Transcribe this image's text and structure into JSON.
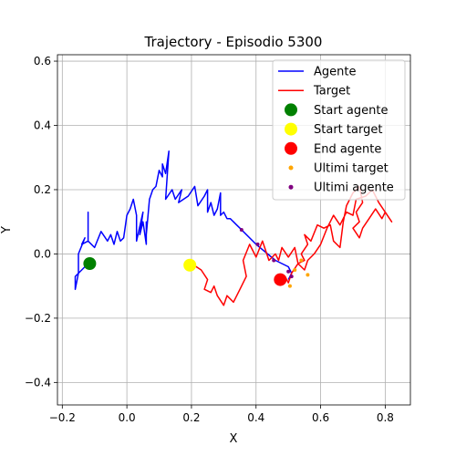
{
  "chart_data": {
    "type": "line",
    "title": "Trajectory - Episodio 5300",
    "xlabel": "X",
    "ylabel": "Y",
    "xlim": [
      -0.215,
      0.878
    ],
    "ylim": [
      -0.47,
      0.62
    ],
    "xticks": [
      -0.2,
      0.0,
      0.2,
      0.4,
      0.6,
      0.8
    ],
    "xtick_labels": [
      "−0.2",
      "0.0",
      "0.2",
      "0.4",
      "0.6",
      "0.8"
    ],
    "yticks": [
      -0.4,
      -0.2,
      0.0,
      0.2,
      0.4,
      0.6
    ],
    "ytick_labels": [
      "−0.4",
      "−0.2",
      "0.0",
      "0.2",
      "0.4",
      "0.6"
    ],
    "grid": true,
    "legend_position": "top-right",
    "colors": {
      "agent": "#0000ff",
      "target": "#ff0000",
      "start_agent": "#008000",
      "start_target": "#ffff00",
      "end_agent": "#ff0000",
      "last_target": "#ffa500",
      "last_agent": "#800080"
    },
    "series": [
      {
        "name": "Agente",
        "kind": "line",
        "points": [
          [
            -0.12,
            -0.03
          ],
          [
            -0.16,
            -0.07
          ],
          [
            -0.16,
            -0.11
          ],
          [
            -0.15,
            -0.06
          ],
          [
            -0.15,
            0.0
          ],
          [
            -0.13,
            0.05
          ],
          [
            -0.14,
            0.03
          ],
          [
            -0.12,
            0.04
          ],
          [
            -0.12,
            0.13
          ],
          [
            -0.12,
            0.04
          ],
          [
            -0.1,
            0.02
          ],
          [
            -0.08,
            0.07
          ],
          [
            -0.06,
            0.04
          ],
          [
            -0.05,
            0.06
          ],
          [
            -0.04,
            0.03
          ],
          [
            -0.03,
            0.07
          ],
          [
            -0.02,
            0.04
          ],
          [
            -0.01,
            0.05
          ],
          [
            0.0,
            0.12
          ],
          [
            0.01,
            0.14
          ],
          [
            0.02,
            0.17
          ],
          [
            0.03,
            0.12
          ],
          [
            0.03,
            0.04
          ],
          [
            0.05,
            0.13
          ],
          [
            0.04,
            0.06
          ],
          [
            0.05,
            0.1
          ],
          [
            0.06,
            0.03
          ],
          [
            0.06,
            0.1
          ],
          [
            0.06,
            0.06
          ],
          [
            0.07,
            0.17
          ],
          [
            0.08,
            0.2
          ],
          [
            0.09,
            0.21
          ],
          [
            0.1,
            0.26
          ],
          [
            0.11,
            0.24
          ],
          [
            0.11,
            0.28
          ],
          [
            0.12,
            0.25
          ],
          [
            0.13,
            0.32
          ],
          [
            0.12,
            0.17
          ],
          [
            0.14,
            0.2
          ],
          [
            0.15,
            0.17
          ],
          [
            0.17,
            0.2
          ],
          [
            0.16,
            0.16
          ],
          [
            0.19,
            0.18
          ],
          [
            0.21,
            0.21
          ],
          [
            0.22,
            0.15
          ],
          [
            0.24,
            0.18
          ],
          [
            0.25,
            0.2
          ],
          [
            0.25,
            0.13
          ],
          [
            0.26,
            0.16
          ],
          [
            0.27,
            0.12
          ],
          [
            0.28,
            0.14
          ],
          [
            0.29,
            0.19
          ],
          [
            0.29,
            0.12
          ],
          [
            0.3,
            0.13
          ],
          [
            0.31,
            0.11
          ],
          [
            0.32,
            0.11
          ],
          [
            0.33,
            0.1
          ],
          [
            0.34,
            0.09
          ],
          [
            0.35,
            0.08
          ],
          [
            0.4,
            0.03
          ],
          [
            0.46,
            -0.02
          ],
          [
            0.5,
            -0.04
          ],
          [
            0.51,
            -0.06
          ],
          [
            0.5,
            -0.08
          ]
        ]
      },
      {
        "name": "Target",
        "kind": "line",
        "points": [
          [
            0.2,
            -0.03
          ],
          [
            0.23,
            -0.05
          ],
          [
            0.25,
            -0.08
          ],
          [
            0.24,
            -0.11
          ],
          [
            0.26,
            -0.12
          ],
          [
            0.27,
            -0.1
          ],
          [
            0.28,
            -0.13
          ],
          [
            0.3,
            -0.16
          ],
          [
            0.31,
            -0.13
          ],
          [
            0.33,
            -0.15
          ],
          [
            0.35,
            -0.11
          ],
          [
            0.37,
            -0.07
          ],
          [
            0.36,
            -0.02
          ],
          [
            0.38,
            0.03
          ],
          [
            0.4,
            -0.01
          ],
          [
            0.42,
            0.04
          ],
          [
            0.44,
            -0.02
          ],
          [
            0.46,
            0.0
          ],
          [
            0.47,
            -0.02
          ],
          [
            0.48,
            0.02
          ],
          [
            0.5,
            -0.01
          ],
          [
            0.52,
            0.02
          ],
          [
            0.53,
            -0.03
          ],
          [
            0.55,
            -0.02
          ],
          [
            0.54,
            0.0
          ],
          [
            0.56,
            0.03
          ],
          [
            0.55,
            0.06
          ],
          [
            0.57,
            0.04
          ],
          [
            0.59,
            0.09
          ],
          [
            0.61,
            0.08
          ],
          [
            0.63,
            0.09
          ],
          [
            0.64,
            0.04
          ],
          [
            0.66,
            0.02
          ],
          [
            0.67,
            0.1
          ],
          [
            0.68,
            0.15
          ],
          [
            0.7,
            0.19
          ],
          [
            0.72,
            0.21
          ],
          [
            0.73,
            0.16
          ],
          [
            0.71,
            0.13
          ],
          [
            0.72,
            0.1
          ],
          [
            0.7,
            0.08
          ],
          [
            0.72,
            0.05
          ],
          [
            0.73,
            0.08
          ],
          [
            0.75,
            0.11
          ],
          [
            0.77,
            0.14
          ],
          [
            0.79,
            0.11
          ],
          [
            0.8,
            0.13
          ],
          [
            0.82,
            0.1
          ],
          [
            0.78,
            0.16
          ],
          [
            0.76,
            0.2
          ],
          [
            0.74,
            0.18
          ],
          [
            0.71,
            0.17
          ],
          [
            0.7,
            0.12
          ],
          [
            0.68,
            0.13
          ],
          [
            0.66,
            0.09
          ],
          [
            0.64,
            0.12
          ],
          [
            0.62,
            0.08
          ],
          [
            0.6,
            0.03
          ],
          [
            0.58,
            0.0
          ],
          [
            0.56,
            -0.02
          ],
          [
            0.55,
            -0.05
          ],
          [
            0.53,
            -0.03
          ],
          [
            0.51,
            -0.06
          ],
          [
            0.5,
            -0.09
          ],
          [
            0.49,
            -0.07
          ],
          [
            0.47,
            -0.08
          ]
        ]
      },
      {
        "name": "Start agente",
        "kind": "marker",
        "size": 11,
        "points": [
          [
            -0.115,
            -0.03
          ]
        ]
      },
      {
        "name": "Start target",
        "kind": "marker",
        "size": 11,
        "points": [
          [
            0.195,
            -0.035
          ]
        ]
      },
      {
        "name": "End agente",
        "kind": "marker",
        "size": 11,
        "points": [
          [
            0.475,
            -0.08
          ]
        ]
      },
      {
        "name": "Ultimi target",
        "kind": "dots",
        "size": 3,
        "points": [
          [
            0.505,
            -0.1
          ],
          [
            0.52,
            -0.05
          ],
          [
            0.56,
            -0.065
          ],
          [
            0.54,
            -0.02
          ]
        ]
      },
      {
        "name": "Ultimi agente",
        "kind": "dots",
        "size": 3,
        "points": [
          [
            0.355,
            0.075
          ],
          [
            0.405,
            0.03
          ],
          [
            0.455,
            -0.02
          ],
          [
            0.5,
            -0.055
          ],
          [
            0.51,
            -0.07
          ]
        ]
      }
    ]
  }
}
